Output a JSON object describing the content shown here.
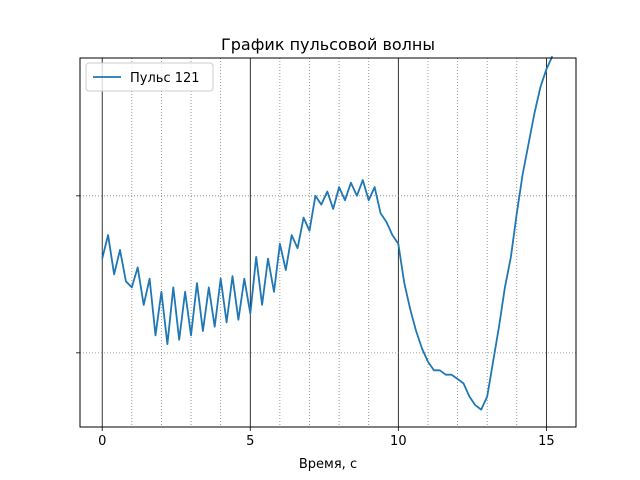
{
  "chart_data": {
    "type": "line",
    "title": "График пульсовой волны",
    "xlabel": "Время, с",
    "ylabel": "",
    "xlim": [
      -0.75,
      16.0
    ],
    "ylim": [
      -2.65,
      1.58
    ],
    "x_ticks": [
      0,
      5,
      10,
      15
    ],
    "x_tick_labels": [
      "0",
      "5",
      "10",
      "15"
    ],
    "y_ticks": [
      -1.8,
      0.0
    ],
    "y_tick_labels": [
      "",
      ""
    ],
    "grid": {
      "major_x": "solid black",
      "minor_x": "dotted gray",
      "major_y": "dotted gray",
      "x_minor_step": 1
    },
    "legend_position": "upper left",
    "series": [
      {
        "name": "Пульс 121",
        "color": "#1f77b4",
        "x": [
          0.0,
          0.2,
          0.4,
          0.6,
          0.8,
          1.0,
          1.2,
          1.4,
          1.6,
          1.8,
          2.0,
          2.2,
          2.4,
          2.6,
          2.8,
          3.0,
          3.2,
          3.4,
          3.6,
          3.8,
          4.0,
          4.2,
          4.4,
          4.6,
          4.8,
          5.0,
          5.2,
          5.4,
          5.6,
          5.8,
          6.0,
          6.2,
          6.4,
          6.6,
          6.8,
          7.0,
          7.2,
          7.4,
          7.6,
          7.8,
          8.0,
          8.2,
          8.4,
          8.6,
          8.8,
          9.0,
          9.2,
          9.4,
          9.6,
          9.8,
          10.0,
          10.2,
          10.4,
          10.6,
          10.8,
          11.0,
          11.2,
          11.4,
          11.6,
          11.8,
          12.0,
          12.2,
          12.4,
          12.6,
          12.8,
          13.0,
          13.2,
          13.4,
          13.6,
          13.8,
          14.0,
          14.2,
          14.4,
          14.6,
          14.8,
          15.0,
          15.2
        ],
        "y": [
          -0.72,
          -0.45,
          -0.9,
          -0.62,
          -0.98,
          -1.05,
          -0.82,
          -1.25,
          -0.95,
          -1.6,
          -1.1,
          -1.7,
          -1.05,
          -1.65,
          -1.1,
          -1.6,
          -1.0,
          -1.55,
          -1.05,
          -1.5,
          -0.95,
          -1.45,
          -0.92,
          -1.42,
          -0.95,
          -1.35,
          -0.7,
          -1.25,
          -0.72,
          -1.1,
          -0.55,
          -0.85,
          -0.45,
          -0.6,
          -0.25,
          -0.4,
          0.0,
          -0.1,
          0.05,
          -0.15,
          0.1,
          -0.05,
          0.15,
          0.0,
          0.18,
          -0.05,
          0.1,
          -0.2,
          -0.3,
          -0.45,
          -0.55,
          -1.0,
          -1.3,
          -1.55,
          -1.75,
          -1.9,
          -2.0,
          -2.0,
          -2.05,
          -2.05,
          -2.1,
          -2.15,
          -2.3,
          -2.4,
          -2.45,
          -2.3,
          -1.9,
          -1.5,
          -1.05,
          -0.7,
          -0.2,
          0.25,
          0.6,
          0.95,
          1.25,
          1.45,
          1.6
        ]
      }
    ]
  }
}
